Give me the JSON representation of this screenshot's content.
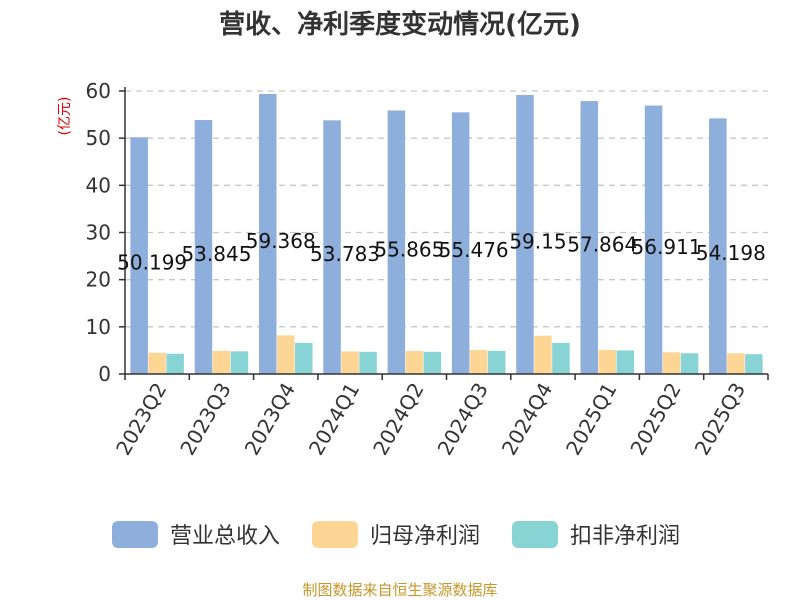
{
  "chart_data": {
    "type": "bar",
    "title": "营收、净利季度变动情况(亿元)",
    "ylabel": "(亿元)",
    "xlabel": "",
    "ylim": [
      0,
      60
    ],
    "yticks": [
      0,
      10,
      20,
      30,
      40,
      50,
      60
    ],
    "grid": true,
    "legend_position": "bottom",
    "categories": [
      "2023Q2",
      "2023Q3",
      "2023Q4",
      "2024Q1",
      "2024Q2",
      "2024Q3",
      "2024Q4",
      "2025Q1",
      "2025Q2",
      "2025Q3"
    ],
    "series": [
      {
        "name": "营业总收入",
        "color": "#8eaedb",
        "values": [
          50.199,
          53.845,
          59.368,
          53.783,
          55.865,
          55.476,
          59.15,
          57.864,
          56.911,
          54.198
        ],
        "labels": [
          "50.199",
          "53.845",
          "59.368",
          "53.783",
          "55.865",
          "55.476",
          "59.15",
          "57.864",
          "56.911",
          "54.198"
        ]
      },
      {
        "name": "归母净利润",
        "color": "#fdd696",
        "values": [
          4.5,
          4.9,
          8.2,
          4.8,
          4.9,
          5.1,
          8.1,
          5.1,
          4.6,
          4.4
        ]
      },
      {
        "name": "扣非净利润",
        "color": "#88d4d4",
        "values": [
          4.3,
          4.8,
          6.6,
          4.7,
          4.7,
          4.9,
          6.6,
          5.0,
          4.4,
          4.2
        ]
      }
    ],
    "footer": "制图数据来自恒生聚源数据库"
  }
}
